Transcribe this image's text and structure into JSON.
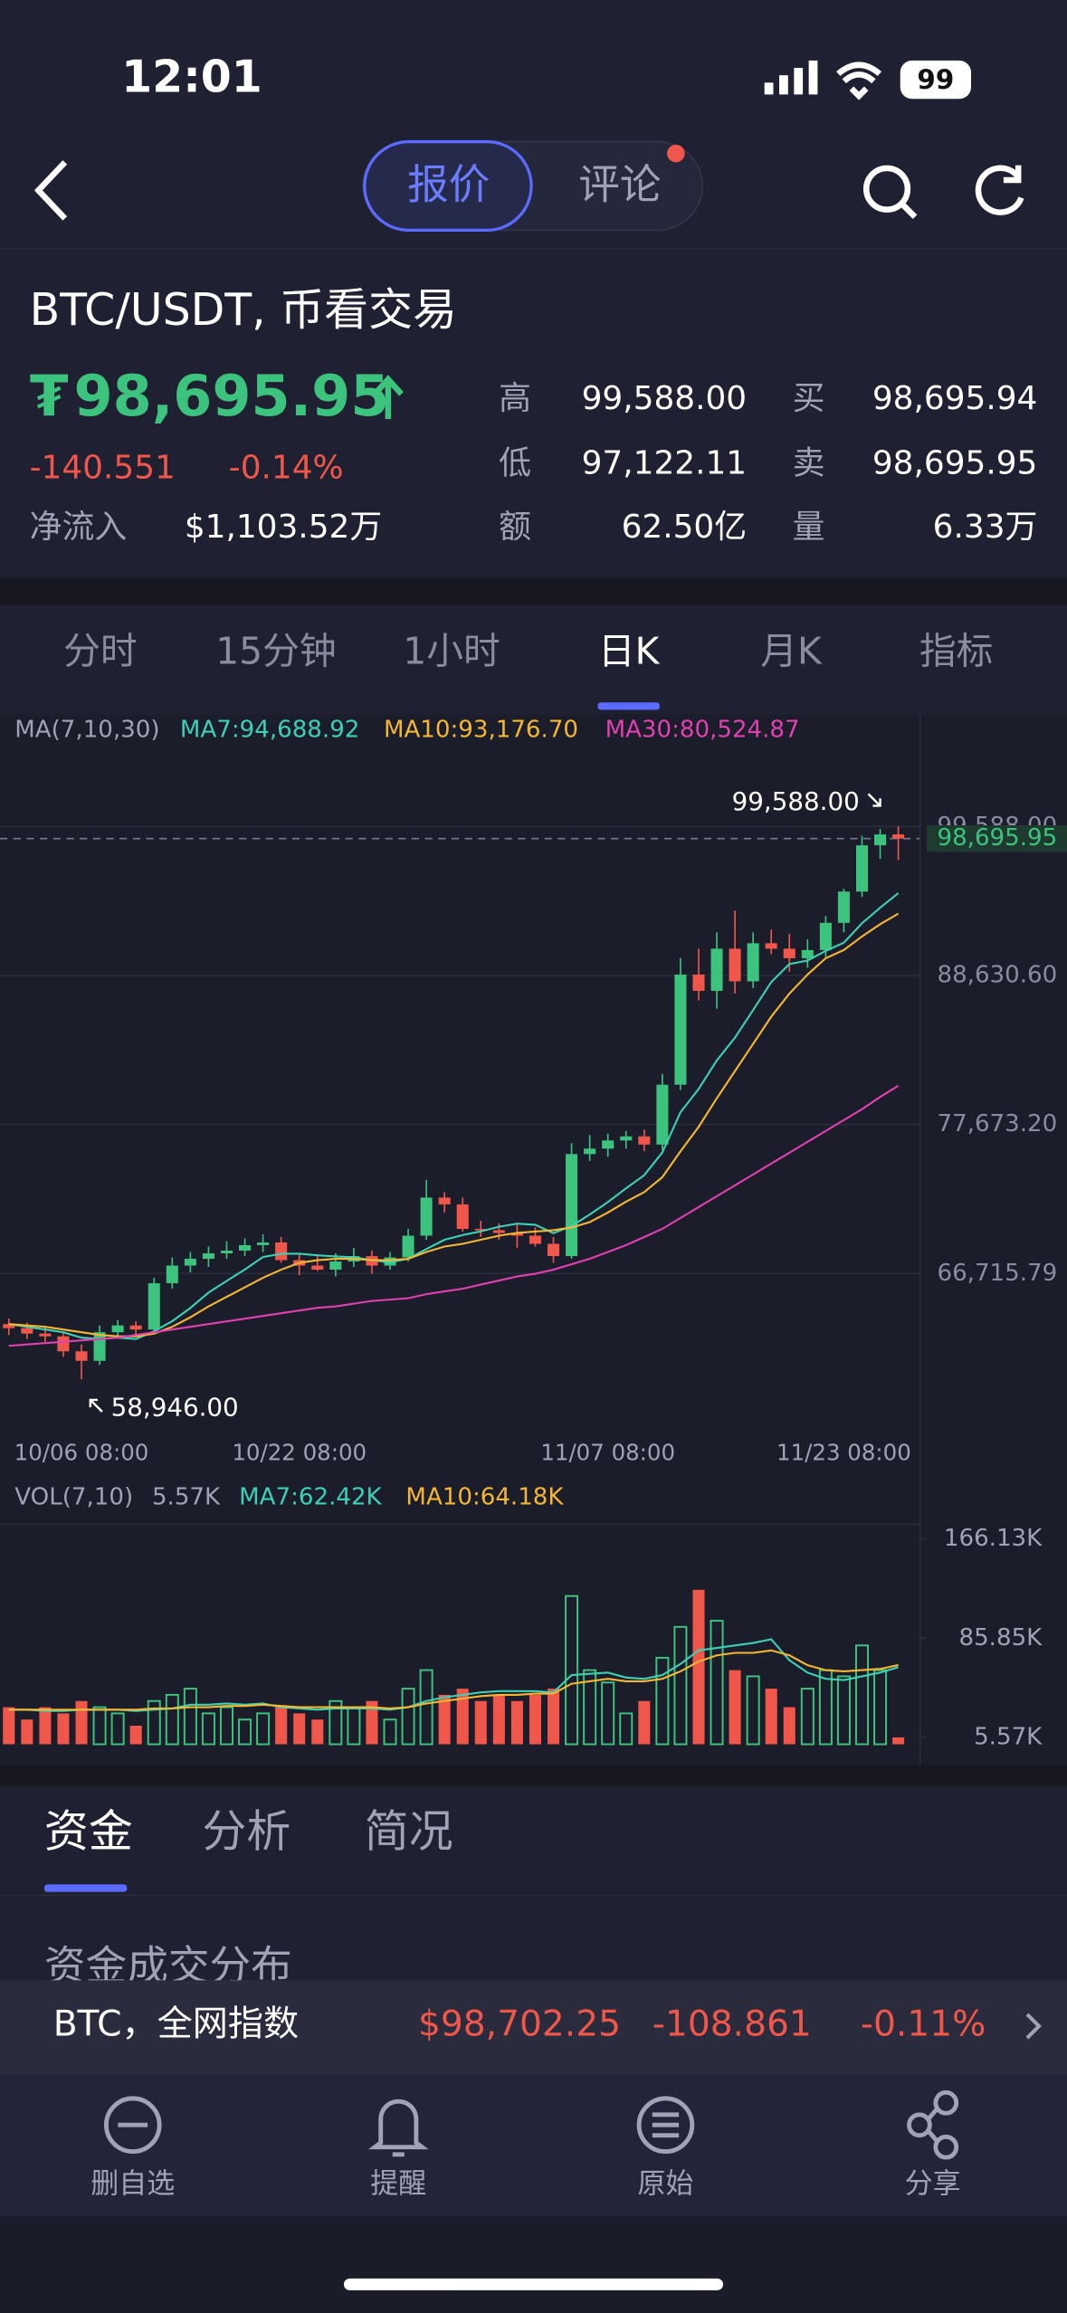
{
  "status": {
    "time": "12:01",
    "battery": "99"
  },
  "header": {
    "tabs": [
      "报价",
      "评论"
    ]
  },
  "summary": {
    "title": "BTC/USDT, 币看交易",
    "currency": "₮",
    "price": "98,695.95",
    "change": "-140.551",
    "change_pct": "-0.14%",
    "inflow_label": "净流入",
    "inflow": "$1,103.52万",
    "stats_left": [
      [
        "高",
        "99,588.00"
      ],
      [
        "低",
        "97,122.11"
      ],
      [
        "额",
        "62.50亿"
      ]
    ],
    "stats_right": [
      [
        "买",
        "98,695.94"
      ],
      [
        "卖",
        "98,695.95"
      ],
      [
        "量",
        "6.33万"
      ]
    ]
  },
  "periods": [
    "分时",
    "15分钟",
    "1小时",
    "日K",
    "月K",
    "指标"
  ],
  "chart_data": {
    "type": "candlestick",
    "ma_legend": "MA(7,10,30)",
    "ylim": [
      55650,
      105560
    ],
    "yticks": [
      {
        "value": 99588,
        "label": "99,588.00"
      },
      {
        "value": 88630.6,
        "label": "88,630.60"
      },
      {
        "value": 77673.2,
        "label": "77,673.20"
      },
      {
        "value": 66715.79,
        "label": "66,715.79"
      }
    ],
    "xticks": [
      {
        "value": 4,
        "label": "10/06 08:00"
      },
      {
        "value": 16,
        "label": "10/22 08:00"
      },
      {
        "value": 33,
        "label": "11/07 08:00"
      },
      {
        "value": 46,
        "label": "11/23 08:00"
      }
    ],
    "up_color": "#3cc47f",
    "down_color": "#f0574a",
    "candles": [
      [
        63000,
        63400,
        62200,
        62700
      ],
      [
        62700,
        63100,
        61900,
        62300
      ],
      [
        62300,
        62800,
        61600,
        62100
      ],
      [
        62100,
        62400,
        60600,
        61000
      ],
      [
        61000,
        61500,
        58946,
        60300
      ],
      [
        60300,
        62900,
        60000,
        62400
      ],
      [
        62400,
        63300,
        62000,
        62900
      ],
      [
        62900,
        63200,
        62200,
        62600
      ],
      [
        62600,
        66400,
        62400,
        66000
      ],
      [
        66000,
        67900,
        65600,
        67300
      ],
      [
        67300,
        68300,
        66800,
        67800
      ],
      [
        67800,
        68700,
        67200,
        68200
      ],
      [
        68200,
        69100,
        67800,
        68400
      ],
      [
        68400,
        69300,
        68000,
        68800
      ],
      [
        68800,
        69600,
        68300,
        69000
      ],
      [
        69000,
        69400,
        67500,
        67700
      ],
      [
        67700,
        68100,
        66600,
        67300
      ],
      [
        67300,
        68000,
        66900,
        67000
      ],
      [
        67000,
        68200,
        66500,
        67600
      ],
      [
        67600,
        68600,
        67200,
        68000
      ],
      [
        68000,
        68400,
        66700,
        67300
      ],
      [
        67300,
        68300,
        67000,
        67900
      ],
      [
        67900,
        70000,
        67600,
        69500
      ],
      [
        69500,
        73600,
        69200,
        72300
      ],
      [
        72300,
        72700,
        71200,
        71800
      ],
      [
        71800,
        72300,
        69800,
        70000
      ],
      [
        70000,
        70600,
        69400,
        69900
      ],
      [
        69900,
        70400,
        69200,
        69700
      ],
      [
        69700,
        70300,
        68600,
        69500
      ],
      [
        69500,
        70100,
        68700,
        68900
      ],
      [
        68900,
        69400,
        67500,
        68000
      ],
      [
        68000,
        76300,
        67800,
        75500
      ],
      [
        75500,
        76900,
        75000,
        75900
      ],
      [
        75900,
        77000,
        75300,
        76500
      ],
      [
        76500,
        77200,
        75900,
        76800
      ],
      [
        76800,
        77300,
        75700,
        76200
      ],
      [
        76200,
        81400,
        75800,
        80600
      ],
      [
        80600,
        89900,
        80200,
        88700
      ],
      [
        88700,
        90600,
        86800,
        87500
      ],
      [
        87500,
        91800,
        86200,
        90600
      ],
      [
        90600,
        93400,
        87300,
        88200
      ],
      [
        88200,
        91800,
        87700,
        91000
      ],
      [
        91000,
        92000,
        90200,
        90600
      ],
      [
        90600,
        91700,
        88900,
        89900
      ],
      [
        89900,
        91300,
        89200,
        90500
      ],
      [
        90500,
        93000,
        90000,
        92500
      ],
      [
        92500,
        95000,
        91800,
        94800
      ],
      [
        94800,
        98900,
        94400,
        98200
      ],
      [
        98200,
        99400,
        97200,
        99000
      ],
      [
        99000,
        99588,
        97122.11,
        98695.95
      ]
    ],
    "ma_series": [
      {
        "label": "MA7:94,688.92",
        "color": "#3cd0b5",
        "values": [
          63000,
          62800,
          62600,
          62400,
          62000,
          61900,
          62000,
          61900,
          62471,
          63214,
          64186,
          65314,
          66171,
          67014,
          67929,
          68171,
          68171,
          68057,
          67971,
          67914,
          67700,
          67543,
          67800,
          68514,
          69200,
          69543,
          69814,
          70157,
          70386,
          70300,
          69686,
          70214,
          71057,
          71971,
          72986,
          73943,
          75614,
          78571,
          80286,
          82386,
          84057,
          86086,
          88143,
          89471,
          89729,
          90443,
          91043,
          92471,
          93614,
          94688.92
        ]
      },
      {
        "label": "MA10:93,176.70",
        "color": "#f5b731",
        "values": [
          63000,
          62900,
          62800,
          62600,
          62400,
          62200,
          62100,
          62100,
          62300,
          62800,
          63500,
          64300,
          65000,
          65700,
          66400,
          67000,
          67500,
          67700,
          67800,
          67800,
          67700,
          67700,
          67800,
          68300,
          68700,
          68900,
          69200,
          69500,
          69700,
          69800,
          69900,
          70100,
          70500,
          71200,
          72000,
          72700,
          73800,
          75700,
          77500,
          79600,
          81600,
          83600,
          85600,
          87300,
          88700,
          89900,
          90500,
          91500,
          92400,
          93176.7
        ]
      },
      {
        "label": "MA30:80,524.87",
        "color": "#e040b0",
        "values": [
          61400,
          61500,
          61600,
          61700,
          61800,
          61900,
          62000,
          62200,
          62400,
          62600,
          62800,
          63000,
          63200,
          63400,
          63600,
          63800,
          64000,
          64200,
          64300,
          64500,
          64700,
          64800,
          64900,
          65200,
          65400,
          65600,
          65900,
          66200,
          66500,
          66700,
          67000,
          67400,
          67800,
          68300,
          68800,
          69400,
          70000,
          70800,
          71600,
          72400,
          73200,
          74000,
          74800,
          75600,
          76400,
          77200,
          78000,
          78800,
          79700,
          80524.87
        ]
      }
    ],
    "price_tag": {
      "value": 98695.95,
      "label": "98,695.95"
    },
    "annotations": [
      {
        "value": 99588,
        "label": "99,588.00"
      },
      {
        "value": 58946,
        "label": "58,946.00"
      }
    ],
    "volume": {
      "legend": "VOL(7,10)",
      "current": "5.57K",
      "ylim": [
        0,
        178
      ],
      "yticks": [
        {
          "value": 166.13,
          "label": "166.13K"
        },
        {
          "value": 85.85,
          "label": "85.85K"
        },
        {
          "value": 5.57,
          "label": "5.57K"
        }
      ],
      "values": [
        30,
        20,
        30,
        25,
        35,
        30,
        25,
        15,
        35,
        40,
        45,
        25,
        30,
        20,
        25,
        30,
        25,
        20,
        35,
        30,
        35,
        20,
        45,
        60,
        40,
        45,
        35,
        40,
        35,
        40,
        45,
        120,
        60,
        50,
        25,
        35,
        70,
        95,
        125,
        100,
        60,
        55,
        45,
        30,
        45,
        60,
        55,
        80,
        60,
        5.57
      ],
      "ma_series": [
        {
          "label": "MA7:62.42K",
          "color": "#3cd0b5",
          "values": [
            28,
            28,
            27,
            27,
            28,
            28,
            28,
            27,
            28,
            29,
            32,
            32,
            33,
            32,
            33,
            30,
            29,
            28,
            29,
            29,
            29,
            28,
            30,
            35,
            38,
            40,
            42,
            43,
            43,
            43,
            42,
            56,
            57,
            58,
            54,
            53,
            56,
            65,
            76,
            78,
            80,
            82,
            85,
            68,
            58,
            53,
            52,
            55,
            58,
            62.42
          ]
        },
        {
          "label": "MA10:64.18K",
          "color": "#f5b731",
          "values": [
            28,
            28,
            28,
            28,
            28,
            28,
            28,
            28,
            29,
            29,
            30,
            30,
            31,
            31,
            32,
            31,
            30,
            30,
            30,
            30,
            30,
            29,
            30,
            33,
            35,
            37,
            39,
            40,
            40,
            41,
            41,
            49,
            51,
            53,
            51,
            51,
            53,
            59,
            67,
            72,
            74,
            74,
            76,
            72,
            64,
            60,
            59,
            60,
            61,
            64.18
          ]
        }
      ]
    }
  },
  "sections": {
    "tabs": [
      "资金",
      "分析",
      "简况"
    ],
    "subtitle": "资金成交分布"
  },
  "ticker": {
    "name": "BTC，全网指数",
    "price": "$98,702.25",
    "change": "-108.861",
    "change_pct": "-0.11%"
  },
  "nav": [
    "删自选",
    "提醒",
    "原始",
    "分享"
  ]
}
